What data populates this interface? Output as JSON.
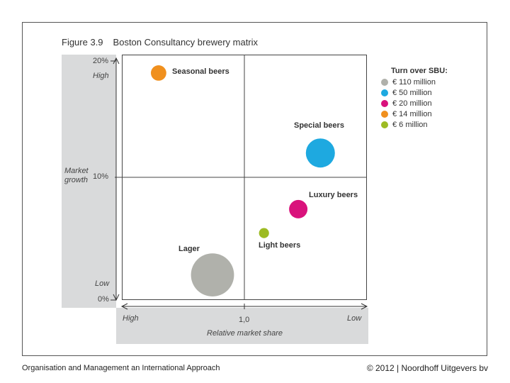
{
  "title": {
    "figure": "Figure 3.9",
    "text": "Boston Consultancy brewery matrix"
  },
  "chart_data": {
    "type": "scatter",
    "subtype": "bubble",
    "title": "Boston Consultancy brewery matrix",
    "xlabel": "Relative market share",
    "ylabel": "Market growth",
    "x_ticks": {
      "left": "High",
      "mid": "1,0",
      "right": "Low"
    },
    "y_ticks": {
      "top": "20%",
      "top_word": "High",
      "mid": "10%",
      "bottom": "0%",
      "bottom_word": "Low"
    },
    "ylim": [
      0,
      20
    ],
    "x_note": "x scale runs from High (left) to Low (right); values are position fraction along axis",
    "points": [
      {
        "name": "Seasonal beers",
        "x": 0.15,
        "y": 19.0,
        "turnover_m": 14,
        "color": "#f0901e"
      },
      {
        "name": "Special beers",
        "x": 0.81,
        "y": 12.3,
        "turnover_m": 50,
        "color": "#1ea9e0"
      },
      {
        "name": "Luxury beers",
        "x": 0.72,
        "y": 7.6,
        "turnover_m": 20,
        "color": "#d9127c"
      },
      {
        "name": "Light beers",
        "x": 0.58,
        "y": 5.6,
        "turnover_m": 6,
        "color": "#9dbb23"
      },
      {
        "name": "Lager",
        "x": 0.37,
        "y": 2.1,
        "turnover_m": 110,
        "color": "#b0b1ab"
      }
    ],
    "legend": {
      "title": "Turn over SBU:",
      "placement": "right",
      "items": [
        {
          "label": "€ 110 million",
          "color": "#b0b1ab"
        },
        {
          "label": "€ 50 million",
          "color": "#1ea9e0"
        },
        {
          "label": "€ 20 million",
          "color": "#d9127c"
        },
        {
          "label": "€ 14 million",
          "color": "#f0901e"
        },
        {
          "label": "€ 6 million",
          "color": "#9dbb23"
        }
      ]
    }
  },
  "footer": {
    "left": "Organisation and Management an International Approach",
    "right": "© 2012 | Noordhoff Uitgevers bv"
  }
}
